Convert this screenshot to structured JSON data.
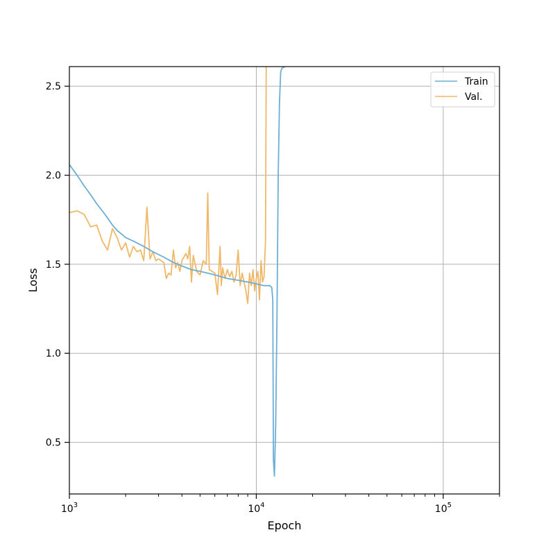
{
  "chart_data": {
    "type": "line",
    "title": "",
    "xlabel": "Epoch",
    "ylabel": "Loss",
    "xscale": "log",
    "xlim": [
      1000,
      200000
    ],
    "ylim": [
      0.21,
      2.61
    ],
    "grid": true,
    "legend_position": "top-right",
    "x_ticks": [
      {
        "value": 1000,
        "base": "10",
        "exp": "3"
      },
      {
        "value": 10000,
        "base": "10",
        "exp": "4"
      },
      {
        "value": 100000,
        "base": "10",
        "exp": "5"
      }
    ],
    "y_ticks": [
      {
        "value": 0.5,
        "label": "0.5"
      },
      {
        "value": 1.0,
        "label": "1.0"
      },
      {
        "value": 1.5,
        "label": "1.5"
      },
      {
        "value": 2.0,
        "label": "2.0"
      },
      {
        "value": 2.5,
        "label": "2.5"
      }
    ],
    "series": [
      {
        "name": "Train",
        "color": "#6baed6",
        "points": [
          [
            1000,
            2.06
          ],
          [
            1100,
            2.0
          ],
          [
            1200,
            1.94
          ],
          [
            1300,
            1.89
          ],
          [
            1400,
            1.84
          ],
          [
            1500,
            1.8
          ],
          [
            1600,
            1.76
          ],
          [
            1700,
            1.72
          ],
          [
            1800,
            1.69
          ],
          [
            1900,
            1.67
          ],
          [
            2000,
            1.65
          ],
          [
            2200,
            1.63
          ],
          [
            2500,
            1.6
          ],
          [
            2800,
            1.57
          ],
          [
            3200,
            1.54
          ],
          [
            3600,
            1.51
          ],
          [
            4000,
            1.49
          ],
          [
            4500,
            1.47
          ],
          [
            5000,
            1.46
          ],
          [
            5500,
            1.45
          ],
          [
            6000,
            1.44
          ],
          [
            6500,
            1.43
          ],
          [
            7000,
            1.42
          ],
          [
            8000,
            1.41
          ],
          [
            9000,
            1.4
          ],
          [
            10000,
            1.39
          ],
          [
            11000,
            1.38
          ],
          [
            11800,
            1.38
          ],
          [
            12100,
            1.37
          ],
          [
            12250,
            1.3
          ],
          [
            12350,
            0.4
          ],
          [
            12500,
            0.31
          ],
          [
            12700,
            0.6
          ],
          [
            12900,
            1.2
          ],
          [
            13100,
            2.0
          ],
          [
            13300,
            2.4
          ],
          [
            13500,
            2.58
          ],
          [
            13700,
            2.6
          ],
          [
            14200,
            2.61
          ]
        ]
      },
      {
        "name": "Val.",
        "color": "#f0b866",
        "points": [
          [
            1000,
            1.79
          ],
          [
            1100,
            1.8
          ],
          [
            1200,
            1.78
          ],
          [
            1300,
            1.71
          ],
          [
            1400,
            1.72
          ],
          [
            1500,
            1.63
          ],
          [
            1600,
            1.58
          ],
          [
            1700,
            1.7
          ],
          [
            1800,
            1.65
          ],
          [
            1900,
            1.58
          ],
          [
            2000,
            1.62
          ],
          [
            2100,
            1.54
          ],
          [
            2200,
            1.6
          ],
          [
            2300,
            1.57
          ],
          [
            2400,
            1.58
          ],
          [
            2500,
            1.52
          ],
          [
            2600,
            1.82
          ],
          [
            2700,
            1.53
          ],
          [
            2800,
            1.57
          ],
          [
            2900,
            1.52
          ],
          [
            3000,
            1.53
          ],
          [
            3200,
            1.51
          ],
          [
            3300,
            1.42
          ],
          [
            3400,
            1.45
          ],
          [
            3500,
            1.44
          ],
          [
            3600,
            1.58
          ],
          [
            3700,
            1.48
          ],
          [
            3800,
            1.51
          ],
          [
            3900,
            1.46
          ],
          [
            4000,
            1.52
          ],
          [
            4200,
            1.56
          ],
          [
            4300,
            1.53
          ],
          [
            4400,
            1.6
          ],
          [
            4500,
            1.4
          ],
          [
            4600,
            1.55
          ],
          [
            4800,
            1.46
          ],
          [
            5000,
            1.44
          ],
          [
            5200,
            1.52
          ],
          [
            5400,
            1.5
          ],
          [
            5500,
            1.9
          ],
          [
            5600,
            1.47
          ],
          [
            5800,
            1.46
          ],
          [
            6000,
            1.45
          ],
          [
            6200,
            1.33
          ],
          [
            6400,
            1.6
          ],
          [
            6500,
            1.38
          ],
          [
            6600,
            1.48
          ],
          [
            6800,
            1.42
          ],
          [
            7000,
            1.47
          ],
          [
            7200,
            1.43
          ],
          [
            7400,
            1.46
          ],
          [
            7600,
            1.4
          ],
          [
            7800,
            1.44
          ],
          [
            8000,
            1.58
          ],
          [
            8200,
            1.38
          ],
          [
            8400,
            1.45
          ],
          [
            8600,
            1.4
          ],
          [
            8800,
            1.35
          ],
          [
            9000,
            1.28
          ],
          [
            9200,
            1.45
          ],
          [
            9400,
            1.38
          ],
          [
            9600,
            1.47
          ],
          [
            9800,
            1.35
          ],
          [
            10000,
            1.42
          ],
          [
            10200,
            1.46
          ],
          [
            10400,
            1.3
          ],
          [
            10600,
            1.52
          ],
          [
            10800,
            1.4
          ],
          [
            11000,
            1.43
          ],
          [
            11200,
            1.63
          ],
          [
            11300,
            2.61
          ]
        ]
      }
    ]
  }
}
